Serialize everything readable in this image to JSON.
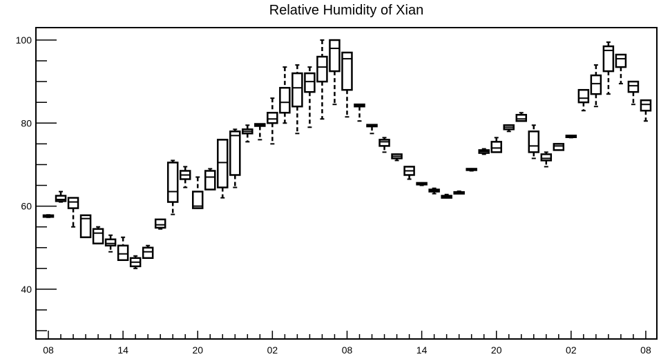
{
  "chart_data": {
    "type": "box",
    "title": "Relative Humidity of Xian",
    "xlabel": "",
    "ylabel": "",
    "ylim": [
      28,
      103
    ],
    "y_ticks": [
      40,
      60,
      80,
      100
    ],
    "x_tick_labels": [
      "08",
      "14",
      "20",
      "02",
      "08",
      "14",
      "20",
      "02",
      "08"
    ],
    "x_tick_hours": [
      0,
      6,
      12,
      18,
      24,
      30,
      36,
      42,
      48
    ],
    "grid": false,
    "boxes": [
      {
        "hour": 0,
        "whisker_low": 57.3,
        "q1": 57.4,
        "median": 57.6,
        "q3": 57.8,
        "whisker_high": 57.9
      },
      {
        "hour": 1,
        "whisker_low": 61.0,
        "q1": 61.2,
        "median": 61.6,
        "q3": 62.5,
        "whisker_high": 63.5
      },
      {
        "hour": 2,
        "whisker_low": 55.0,
        "q1": 59.5,
        "median": 61.0,
        "q3": 62.0,
        "whisker_high": 62.0
      },
      {
        "hour": 3,
        "whisker_low": 52.5,
        "q1": 52.5,
        "median": 57.0,
        "q3": 57.8,
        "whisker_high": 57.8
      },
      {
        "hour": 4,
        "whisker_low": 51.0,
        "q1": 51.0,
        "median": 53.5,
        "q3": 54.5,
        "whisker_high": 55.0
      },
      {
        "hour": 5,
        "whisker_low": 49.0,
        "q1": 50.5,
        "median": 51.0,
        "q3": 52.0,
        "whisker_high": 53.0
      },
      {
        "hour": 6,
        "whisker_low": 47.0,
        "q1": 47.0,
        "median": 48.5,
        "q3": 50.5,
        "whisker_high": 52.5
      },
      {
        "hour": 7,
        "whisker_low": 45.0,
        "q1": 45.5,
        "median": 46.5,
        "q3": 47.5,
        "whisker_high": 48.0
      },
      {
        "hour": 8,
        "whisker_low": 47.5,
        "q1": 47.5,
        "median": 49.0,
        "q3": 50.0,
        "whisker_high": 50.5
      },
      {
        "hour": 9,
        "whisker_low": 54.5,
        "q1": 54.8,
        "median": 55.5,
        "q3": 56.8,
        "whisker_high": 56.8
      },
      {
        "hour": 10,
        "whisker_low": 58.0,
        "q1": 61.0,
        "median": 63.5,
        "q3": 70.5,
        "whisker_high": 71.0
      },
      {
        "hour": 11,
        "whisker_low": 64.5,
        "q1": 66.5,
        "median": 67.5,
        "q3": 68.5,
        "whisker_high": 69.5
      },
      {
        "hour": 12,
        "whisker_low": 59.5,
        "q1": 59.5,
        "median": 60.0,
        "q3": 63.5,
        "whisker_high": 67.0
      },
      {
        "hour": 13,
        "whisker_low": 64.0,
        "q1": 64.0,
        "median": 67.0,
        "q3": 68.5,
        "whisker_high": 69.0
      },
      {
        "hour": 14,
        "whisker_low": 62.0,
        "q1": 64.5,
        "median": 70.5,
        "q3": 76.0,
        "whisker_high": 76.0
      },
      {
        "hour": 15,
        "whisker_low": 64.5,
        "q1": 67.5,
        "median": 77.0,
        "q3": 78.0,
        "whisker_high": 78.5
      },
      {
        "hour": 16,
        "whisker_low": 75.5,
        "q1": 77.5,
        "median": 78.0,
        "q3": 78.5,
        "whisker_high": 79.5
      },
      {
        "hour": 17,
        "whisker_low": 76.0,
        "q1": 79.3,
        "median": 79.6,
        "q3": 79.8,
        "whisker_high": 79.8
      },
      {
        "hour": 18,
        "whisker_low": 75.0,
        "q1": 80.0,
        "median": 81.0,
        "q3": 82.5,
        "whisker_high": 86.0
      },
      {
        "hour": 19,
        "whisker_low": 80.0,
        "q1": 82.5,
        "median": 85.0,
        "q3": 88.5,
        "whisker_high": 93.5
      },
      {
        "hour": 20,
        "whisker_low": 77.5,
        "q1": 84.0,
        "median": 88.5,
        "q3": 92.0,
        "whisker_high": 94.0
      },
      {
        "hour": 21,
        "whisker_low": 79.0,
        "q1": 87.5,
        "median": 90.0,
        "q3": 92.0,
        "whisker_high": 93.5
      },
      {
        "hour": 22,
        "whisker_low": 81.0,
        "q1": 90.0,
        "median": 93.5,
        "q3": 96.0,
        "whisker_high": 100.0
      },
      {
        "hour": 23,
        "whisker_low": 84.5,
        "q1": 92.5,
        "median": 98.0,
        "q3": 100.0,
        "whisker_high": 100.0
      },
      {
        "hour": 24,
        "whisker_low": 81.5,
        "q1": 88.0,
        "median": 95.5,
        "q3": 97.0,
        "whisker_high": 97.0
      },
      {
        "hour": 25,
        "whisker_low": 80.5,
        "q1": 84.0,
        "median": 84.2,
        "q3": 84.5,
        "whisker_high": 84.5
      },
      {
        "hour": 26,
        "whisker_low": 77.5,
        "q1": 79.2,
        "median": 79.4,
        "q3": 79.6,
        "whisker_high": 79.6
      },
      {
        "hour": 27,
        "whisker_low": 73.0,
        "q1": 74.5,
        "median": 75.5,
        "q3": 76.0,
        "whisker_high": 76.5
      },
      {
        "hour": 28,
        "whisker_low": 71.0,
        "q1": 71.5,
        "median": 72.0,
        "q3": 72.5,
        "whisker_high": 72.5
      },
      {
        "hour": 29,
        "whisker_low": 66.5,
        "q1": 67.5,
        "median": 68.5,
        "q3": 69.5,
        "whisker_high": 69.5
      },
      {
        "hour": 30,
        "whisker_low": 65.0,
        "q1": 65.2,
        "median": 65.4,
        "q3": 65.6,
        "whisker_high": 65.6
      },
      {
        "hour": 31,
        "whisker_low": 63.0,
        "q1": 63.5,
        "median": 63.7,
        "q3": 64.0,
        "whisker_high": 64.3
      },
      {
        "hour": 32,
        "whisker_low": 62.0,
        "q1": 62.0,
        "median": 62.3,
        "q3": 62.5,
        "whisker_high": 62.8
      },
      {
        "hour": 33,
        "whisker_low": 63.0,
        "q1": 63.0,
        "median": 63.2,
        "q3": 63.4,
        "whisker_high": 63.6
      },
      {
        "hour": 34,
        "whisker_low": 68.5,
        "q1": 68.7,
        "median": 68.9,
        "q3": 69.0,
        "whisker_high": 69.0
      },
      {
        "hour": 35,
        "whisker_low": 72.5,
        "q1": 72.8,
        "median": 73.2,
        "q3": 73.5,
        "whisker_high": 73.8
      },
      {
        "hour": 36,
        "whisker_low": 73.0,
        "q1": 73.0,
        "median": 74.0,
        "q3": 75.5,
        "whisker_high": 76.5
      },
      {
        "hour": 37,
        "whisker_low": 78.0,
        "q1": 78.5,
        "median": 79.0,
        "q3": 79.5,
        "whisker_high": 79.5
      },
      {
        "hour": 38,
        "whisker_low": 80.5,
        "q1": 80.5,
        "median": 81.0,
        "q3": 82.0,
        "whisker_high": 82.5
      },
      {
        "hour": 39,
        "whisker_low": 71.5,
        "q1": 73.0,
        "median": 74.5,
        "q3": 78.0,
        "whisker_high": 79.5
      },
      {
        "hour": 40,
        "whisker_low": 69.5,
        "q1": 71.0,
        "median": 71.5,
        "q3": 72.5,
        "whisker_high": 73.0
      },
      {
        "hour": 41,
        "whisker_low": 73.5,
        "q1": 73.5,
        "median": 74.5,
        "q3": 75.0,
        "whisker_high": 75.0
      },
      {
        "hour": 42,
        "whisker_low": 76.5,
        "q1": 76.6,
        "median": 76.8,
        "q3": 77.0,
        "whisker_high": 77.0
      },
      {
        "hour": 43,
        "whisker_low": 83.0,
        "q1": 85.0,
        "median": 86.0,
        "q3": 88.0,
        "whisker_high": 88.0
      },
      {
        "hour": 44,
        "whisker_low": 84.0,
        "q1": 87.0,
        "median": 89.5,
        "q3": 91.5,
        "whisker_high": 94.0
      },
      {
        "hour": 45,
        "whisker_low": 87.0,
        "q1": 92.5,
        "median": 97.5,
        "q3": 98.5,
        "whisker_high": 99.5
      },
      {
        "hour": 46,
        "whisker_low": 89.5,
        "q1": 93.5,
        "median": 95.5,
        "q3": 96.5,
        "whisker_high": 96.5
      },
      {
        "hour": 47,
        "whisker_low": 84.5,
        "q1": 87.5,
        "median": 89.0,
        "q3": 90.0,
        "whisker_high": 90.0
      },
      {
        "hour": 48,
        "whisker_low": 80.5,
        "q1": 83.0,
        "median": 84.5,
        "q3": 85.5,
        "whisker_high": 85.5
      }
    ]
  }
}
